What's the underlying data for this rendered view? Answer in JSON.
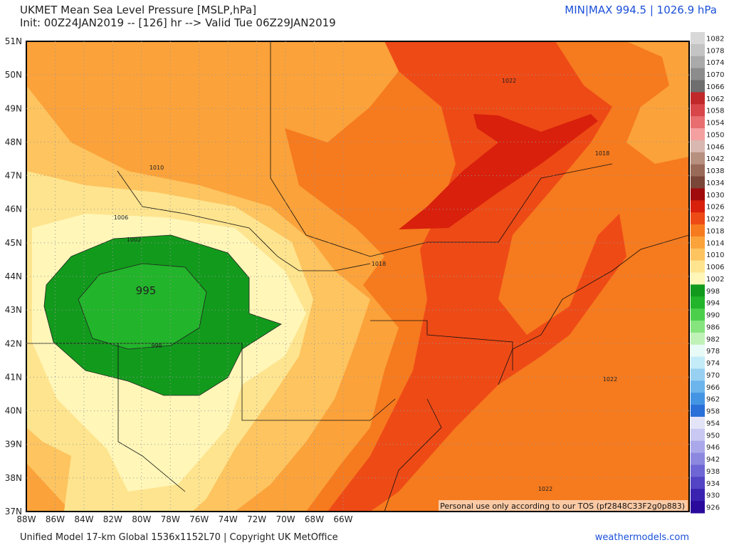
{
  "header": {
    "title": "UKMET Mean Sea Level Pressure [MSLP,hPa]",
    "subtitle": "Init: 00Z24JAN2019 -- [126] hr --> Valid Tue 06Z29JAN2019",
    "minmax": "MIN|MAX 994.5 | 1026.9 hPa"
  },
  "map": {
    "lat_labels": [
      "51N",
      "50N",
      "49N",
      "48N",
      "47N",
      "46N",
      "45N",
      "44N",
      "43N",
      "42N",
      "41N",
      "40N",
      "39N",
      "38N",
      "37N"
    ],
    "lon_labels": [
      "88W",
      "86W",
      "84W",
      "82W",
      "80W",
      "78W",
      "76W",
      "74W",
      "72W",
      "70W",
      "68W",
      "66W"
    ],
    "contour_labels": [
      "995",
      "1010",
      "1006",
      "1002",
      "998",
      "1018",
      "1018",
      "1022",
      "1022",
      "1022"
    ],
    "notice": "Personal use only according to our TOS (pf2848C33F2g0p883)"
  },
  "colorbar": {
    "levels": [
      {
        "label": "1082",
        "color": "#d8d8d8"
      },
      {
        "label": "1078",
        "color": "#c4c4c4"
      },
      {
        "label": "1074",
        "color": "#aaaaaa"
      },
      {
        "label": "1070",
        "color": "#8c8c8c"
      },
      {
        "label": "1066",
        "color": "#6e6e6e"
      },
      {
        "label": "1062",
        "color": "#c0282a"
      },
      {
        "label": "1058",
        "color": "#d8464a"
      },
      {
        "label": "1054",
        "color": "#e86e70"
      },
      {
        "label": "1050",
        "color": "#f4a0a0"
      },
      {
        "label": "1046",
        "color": "#d8b8b0"
      },
      {
        "label": "1042",
        "color": "#b89080"
      },
      {
        "label": "1038",
        "color": "#9a6a58"
      },
      {
        "label": "1034",
        "color": "#7a4638"
      },
      {
        "label": "1030",
        "color": "#a00c0c"
      },
      {
        "label": "1026",
        "color": "#d8200c"
      },
      {
        "label": "1022",
        "color": "#ee4a16"
      },
      {
        "label": "1018",
        "color": "#f67a1e"
      },
      {
        "label": "1014",
        "color": "#fba23a"
      },
      {
        "label": "1010",
        "color": "#fdc460"
      },
      {
        "label": "1006",
        "color": "#fee48e"
      },
      {
        "label": "1002",
        "color": "#fff6b8"
      },
      {
        "label": "998",
        "color": "#129a1c"
      },
      {
        "label": "994",
        "color": "#22b42a"
      },
      {
        "label": "990",
        "color": "#4cd04c"
      },
      {
        "label": "986",
        "color": "#86e47e"
      },
      {
        "label": "982",
        "color": "#c0f2b8"
      },
      {
        "label": "978",
        "color": "#e8fbf6"
      },
      {
        "label": "974",
        "color": "#c4ecf8"
      },
      {
        "label": "970",
        "color": "#98d0f2"
      },
      {
        "label": "966",
        "color": "#6cb4ec"
      },
      {
        "label": "962",
        "color": "#4494e4"
      },
      {
        "label": "958",
        "color": "#2a70d8"
      },
      {
        "label": "954",
        "color": "#e4e4f8"
      },
      {
        "label": "950",
        "color": "#c8c8f2"
      },
      {
        "label": "946",
        "color": "#aaa8ea"
      },
      {
        "label": "942",
        "color": "#8c88e0"
      },
      {
        "label": "938",
        "color": "#6e66d4"
      },
      {
        "label": "934",
        "color": "#5244c4"
      },
      {
        "label": "930",
        "color": "#3a22b0"
      },
      {
        "label": "926",
        "color": "#2a0a9c"
      }
    ]
  },
  "footer": {
    "left": "Unified Model 17-km Global 1536x1152L70 | Copyright UK MetOffice",
    "right": "weathermodels.com"
  }
}
